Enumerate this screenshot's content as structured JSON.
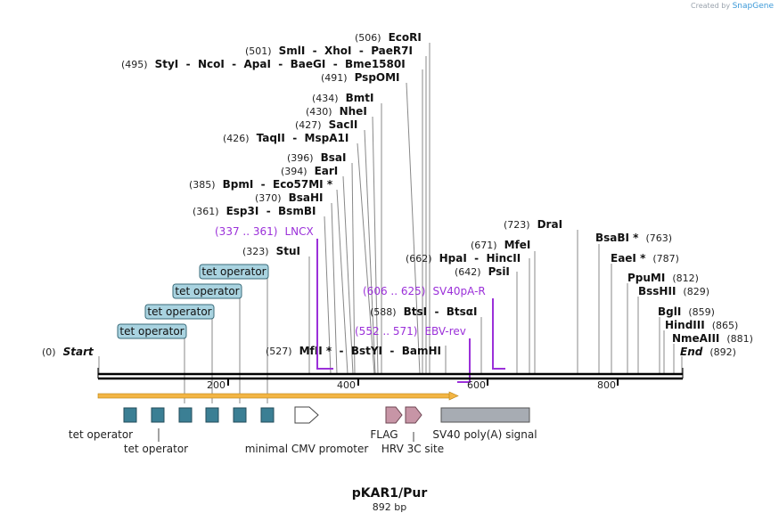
{
  "watermark": {
    "created_by": "Created by",
    "brand": "SnapGene"
  },
  "plasmid": {
    "name": "pKAR1/Pur",
    "length_label": "892 bp",
    "length": 892
  },
  "scale": {
    "ticks": [
      200,
      400,
      600,
      800
    ],
    "start": 0,
    "end": 892
  },
  "sites": [
    {
      "pos": "(0)",
      "name": "Start",
      "italic": true,
      "bp": 0
    },
    {
      "pos": "(892)",
      "name": "End",
      "italic": true,
      "bp": 892
    },
    {
      "pos": "(506)",
      "name": "EcoRI",
      "bp": 506
    },
    {
      "pos": "(501)",
      "name": "SmlI  -  XhoI  -  PaeR7I",
      "bp": 501
    },
    {
      "pos": "(495)",
      "name": "StyI  -  NcoI  -  ApaI  -  BaeGI  -  Bme1580I",
      "bp": 495
    },
    {
      "pos": "(491)",
      "name": "PspOMI",
      "bp": 491
    },
    {
      "pos": "(434)",
      "name": "BmtI",
      "bp": 434
    },
    {
      "pos": "(430)",
      "name": "NheI",
      "bp": 430
    },
    {
      "pos": "(427)",
      "name": "SacII",
      "bp": 427
    },
    {
      "pos": "(426)",
      "name": "TaqII  -  MspA1I",
      "bp": 426
    },
    {
      "pos": "(396)",
      "name": "BsaI",
      "bp": 396
    },
    {
      "pos": "(394)",
      "name": "EarI",
      "bp": 394
    },
    {
      "pos": "(385)",
      "name": "BpmI  -  Eco57MI *",
      "bp": 385
    },
    {
      "pos": "(370)",
      "name": "BsaHI",
      "bp": 370
    },
    {
      "pos": "(361)",
      "name": "Esp3I  -  BsmBI",
      "bp": 361
    },
    {
      "pos": "(323)",
      "name": "StuI",
      "bp": 323
    },
    {
      "pos": "(527)",
      "name": "MfII *  -  BstYI  -  BamHI",
      "bp": 527
    },
    {
      "pos": "(588)",
      "name": "BtsI  -  BtsαI",
      "bp": 588
    },
    {
      "pos": "(642)",
      "name": "PsiI",
      "bp": 642
    },
    {
      "pos": "(662)",
      "name": "HpaI  -  HincII",
      "bp": 662
    },
    {
      "pos": "(671)",
      "name": "MfeI",
      "bp": 671
    },
    {
      "pos": "(723)",
      "name": "DraI",
      "bp": 723
    },
    {
      "pos": "(763)",
      "name": "BsaBI *",
      "bp": 763
    },
    {
      "pos": "(787)",
      "name": "EaeI *",
      "bp": 787
    },
    {
      "pos": "(812)",
      "name": "PpuMI",
      "bp": 812
    },
    {
      "pos": "(829)",
      "name": "BssHII",
      "bp": 829
    },
    {
      "pos": "(859)",
      "name": "BglI",
      "bp": 859
    },
    {
      "pos": "(865)",
      "name": "HindIII",
      "bp": 865
    },
    {
      "pos": "(881)",
      "name": "NmeAIII",
      "bp": 881
    }
  ],
  "primers": [
    {
      "range": "(337 .. 361)",
      "name": "LNCX"
    },
    {
      "range": "(606 .. 625)",
      "name": "SV40pA-R"
    },
    {
      "range": "(552 .. 571)",
      "name": "EBV-rev"
    }
  ],
  "tet_boxes": [
    "tet operator",
    "tet operator",
    "tet operator",
    "tet operator"
  ],
  "features": [
    {
      "name": "tet operator"
    },
    {
      "name": "tet operator"
    },
    {
      "name": "minimal CMV promoter"
    },
    {
      "name": "FLAG"
    },
    {
      "name": "HRV 3C site"
    },
    {
      "name": "SV40 poly(A) signal"
    }
  ],
  "colors": {
    "tet": "#3b7f94",
    "tet_box": "#a9d3e0",
    "flag": "#c795a6",
    "polyA": "#a7acb3",
    "orf": "#f3b544",
    "primer": "#9b30d9"
  }
}
